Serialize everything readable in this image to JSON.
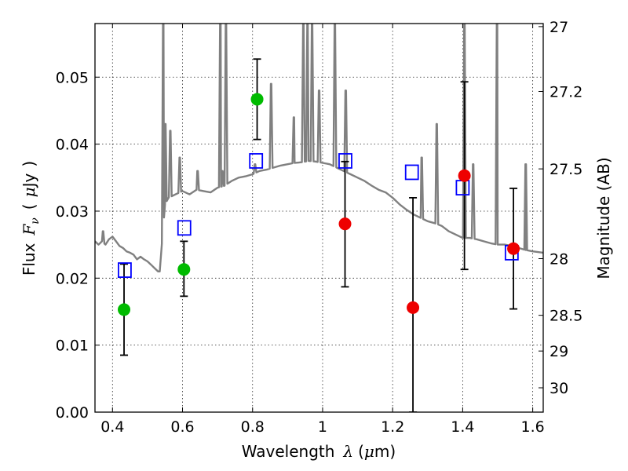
{
  "chart_data": {
    "type": "scatter",
    "title": "",
    "xlabel": "Wavelength  λ (μm)",
    "xlabel_text": "Wavelength",
    "xlabel_symbol": "λ",
    "xlabel_unit_open": "(",
    "xlabel_unit_mu": "μ",
    "xlabel_unit_rest": "m)",
    "ylabel": "Flux  Fν  ( μJy )",
    "ylabel_text": "Flux",
    "ylabel_symbol": "F",
    "ylabel_symbol_sub": "ν",
    "ylabel_unit_open": "(",
    "ylabel_unit_mu": "μ",
    "ylabel_unit_rest": "Jy",
    "ylabel_unit_close": ")",
    "y2label": "Magnitude (AB)",
    "xlim": [
      0.35,
      1.63
    ],
    "ylim": [
      0.0,
      0.058
    ],
    "grid": true,
    "x_ticks": [
      0.4,
      0.6,
      0.8,
      1.0,
      1.2,
      1.4,
      1.6
    ],
    "x_tick_labels": [
      "0.4",
      "0.6",
      "0.8",
      "1",
      "1.2",
      "1.4",
      "1.6"
    ],
    "y_ticks": [
      0.0,
      0.01,
      0.02,
      0.03,
      0.04,
      0.05
    ],
    "y_tick_labels": [
      "0.00",
      "0.01",
      "0.02",
      "0.03",
      "0.04",
      "0.05"
    ],
    "y2_ticks": [
      {
        "mag": 27,
        "label": "27"
      },
      {
        "mag": 27.2,
        "label": "27.2"
      },
      {
        "mag": 27.5,
        "label": "27.5"
      },
      {
        "mag": 28,
        "label": "28"
      },
      {
        "mag": 28.5,
        "label": "28.5"
      },
      {
        "mag": 29,
        "label": "29"
      },
      {
        "mag": 30,
        "label": "30"
      }
    ],
    "colors": {
      "model": "#808080",
      "template_photometry": "#0000ff",
      "optical_detections": "#00bb00",
      "nir_detections": "#ee0000",
      "errorbars": "#000000"
    },
    "series": [
      {
        "kind": "model_spectrum",
        "x": [
          0.35,
          0.36,
          0.37,
          0.38,
          0.39,
          0.4,
          0.41,
          0.42,
          0.43,
          0.44,
          0.45,
          0.46,
          0.47,
          0.48,
          0.49,
          0.5,
          0.51,
          0.52,
          0.53,
          0.535,
          0.54,
          0.55,
          0.56,
          0.58,
          0.6,
          0.62,
          0.64,
          0.66,
          0.68,
          0.7,
          0.72,
          0.74,
          0.76,
          0.78,
          0.8,
          0.82,
          0.84,
          0.86,
          0.88,
          0.9,
          0.92,
          0.94,
          0.96,
          0.98,
          1.0,
          1.02,
          1.04,
          1.06,
          1.08,
          1.1,
          1.12,
          1.14,
          1.16,
          1.18,
          1.2,
          1.22,
          1.24,
          1.26,
          1.28,
          1.3,
          1.32,
          1.34,
          1.36,
          1.38,
          1.4,
          1.42,
          1.44,
          1.46,
          1.48,
          1.5,
          1.52,
          1.54,
          1.56,
          1.58,
          1.6,
          1.63
        ],
        "y": [
          0.0255,
          0.025,
          0.0255,
          0.025,
          0.0258,
          0.0262,
          0.0255,
          0.0248,
          0.0245,
          0.024,
          0.0238,
          0.0235,
          0.0228,
          0.0232,
          0.0228,
          0.0225,
          0.022,
          0.0215,
          0.021,
          0.021,
          0.0245,
          0.031,
          0.032,
          0.0325,
          0.033,
          0.0325,
          0.0332,
          0.033,
          0.0328,
          0.0335,
          0.0338,
          0.0345,
          0.035,
          0.0352,
          0.0355,
          0.036,
          0.0362,
          0.0365,
          0.0368,
          0.037,
          0.0372,
          0.0373,
          0.0375,
          0.0374,
          0.0372,
          0.037,
          0.0365,
          0.036,
          0.0355,
          0.035,
          0.0345,
          0.0338,
          0.0332,
          0.0328,
          0.032,
          0.031,
          0.0302,
          0.0295,
          0.029,
          0.0285,
          0.0282,
          0.0278,
          0.027,
          0.0265,
          0.026,
          0.026,
          0.0258,
          0.0255,
          0.0252,
          0.025,
          0.025,
          0.0248,
          0.0245,
          0.0242,
          0.024,
          0.0238
        ],
        "emission_lines": [
          {
            "x": 0.373,
            "peak": 0.027
          },
          {
            "x": 0.545,
            "peak": 0.058
          },
          {
            "x": 0.551,
            "peak": 0.043
          },
          {
            "x": 0.565,
            "peak": 0.042
          },
          {
            "x": 0.592,
            "peak": 0.038
          },
          {
            "x": 0.643,
            "peak": 0.036
          },
          {
            "x": 0.708,
            "peak": 0.058
          },
          {
            "x": 0.714,
            "peak": 0.036
          },
          {
            "x": 0.724,
            "peak": 0.058
          },
          {
            "x": 0.807,
            "peak": 0.037
          },
          {
            "x": 0.853,
            "peak": 0.049
          },
          {
            "x": 0.918,
            "peak": 0.044
          },
          {
            "x": 0.945,
            "peak": 0.058
          },
          {
            "x": 0.957,
            "peak": 0.058
          },
          {
            "x": 0.97,
            "peak": 0.058
          },
          {
            "x": 0.99,
            "peak": 0.048
          },
          {
            "x": 1.035,
            "peak": 0.058
          },
          {
            "x": 1.066,
            "peak": 0.048
          },
          {
            "x": 1.283,
            "peak": 0.038
          },
          {
            "x": 1.326,
            "peak": 0.043
          },
          {
            "x": 1.405,
            "peak": 0.058
          },
          {
            "x": 1.43,
            "peak": 0.037
          },
          {
            "x": 1.498,
            "peak": 0.058
          },
          {
            "x": 1.58,
            "peak": 0.037
          }
        ]
      },
      {
        "kind": "template_photometry",
        "marker": "open-square",
        "points": [
          {
            "x": 0.435,
            "y": 0.0212
          },
          {
            "x": 0.605,
            "y": 0.0275
          },
          {
            "x": 0.81,
            "y": 0.0375
          },
          {
            "x": 1.065,
            "y": 0.0375
          },
          {
            "x": 1.255,
            "y": 0.0358
          },
          {
            "x": 1.4,
            "y": 0.0335
          },
          {
            "x": 1.54,
            "y": 0.0238
          }
        ]
      },
      {
        "kind": "optical_detections",
        "marker": "filled-circle",
        "points": [
          {
            "x": 0.433,
            "y": 0.0153,
            "err_low": 0.0068,
            "err_high": 0.0068
          },
          {
            "x": 0.604,
            "y": 0.0213,
            "err_low": 0.004,
            "err_high": 0.0042
          },
          {
            "x": 0.813,
            "y": 0.0467,
            "err_low": 0.006,
            "err_high": 0.006
          }
        ]
      },
      {
        "kind": "nir_detections",
        "marker": "filled-circle",
        "points": [
          {
            "x": 1.064,
            "y": 0.0281,
            "err_low": 0.0094,
            "err_high": 0.0093
          },
          {
            "x": 1.258,
            "y": 0.0156,
            "err_low": 0.0156,
            "err_high": 0.0164
          },
          {
            "x": 1.405,
            "y": 0.0353,
            "err_low": 0.014,
            "err_high": 0.014
          },
          {
            "x": 1.545,
            "y": 0.0244,
            "err_low": 0.009,
            "err_high": 0.009
          }
        ]
      }
    ]
  }
}
